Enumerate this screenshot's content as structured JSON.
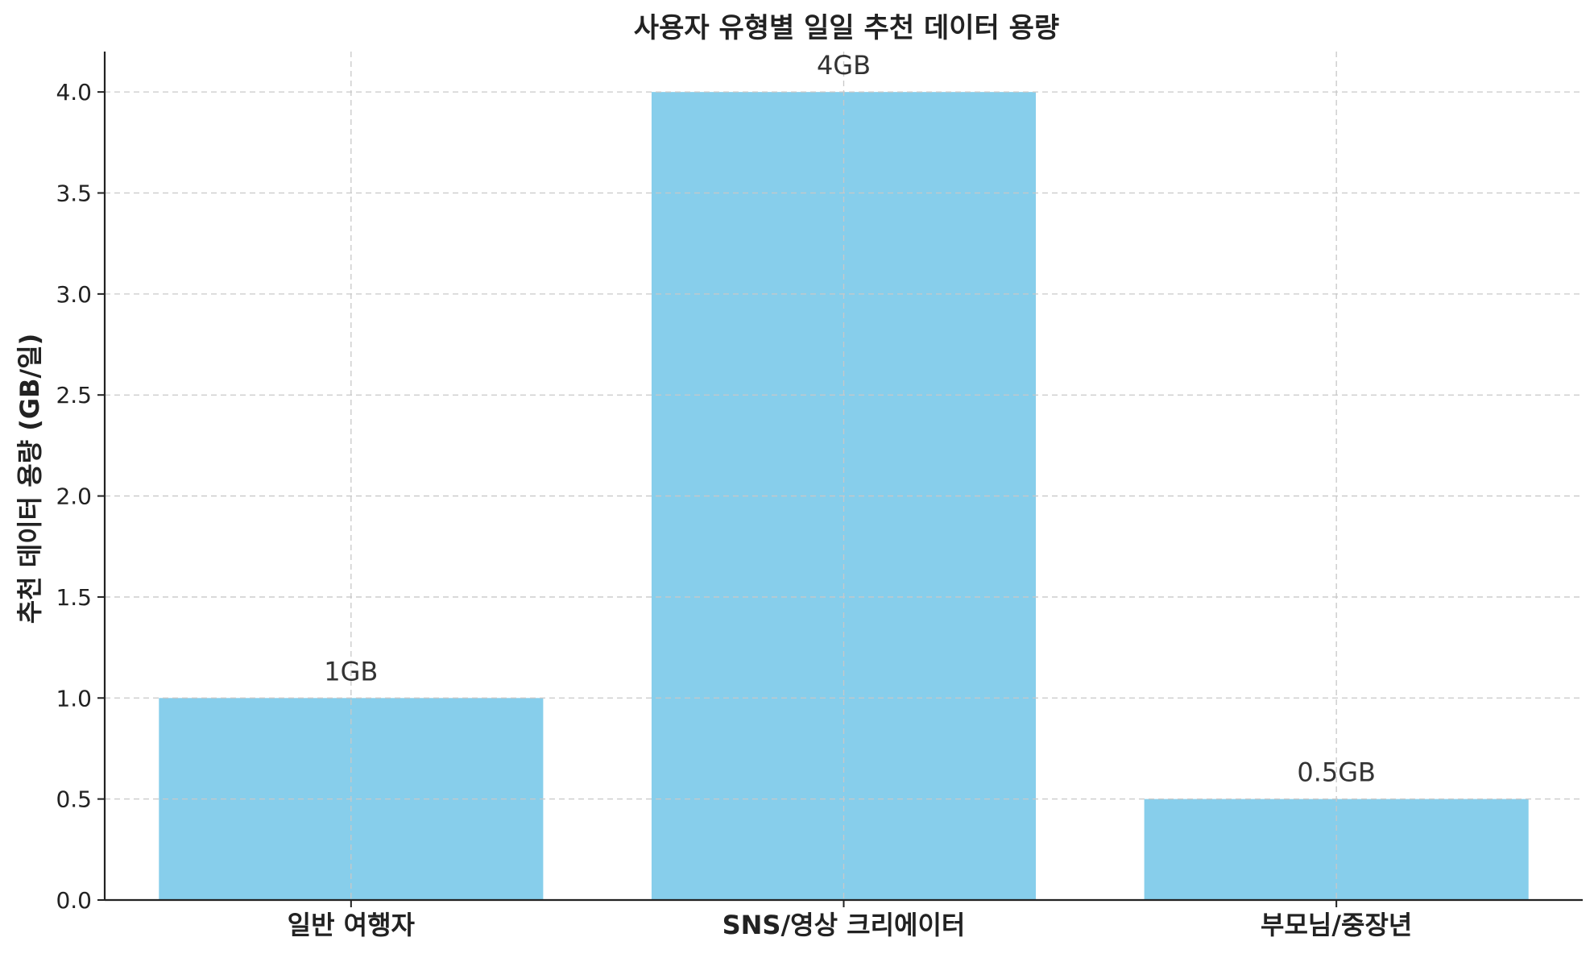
{
  "chart_data": {
    "type": "bar",
    "title": "사용자 유형별 일일 추천 데이터 용량",
    "xlabel": "",
    "ylabel": "추천 데이터 용량 (GB/일)",
    "categories": [
      "일반 여행자",
      "SNS/영상 크리에이터",
      "부모님/중장년"
    ],
    "values": [
      1,
      4,
      0.5
    ],
    "data_labels": [
      "1GB",
      "4GB",
      "0.5GB"
    ],
    "ylim": [
      0,
      4.2
    ],
    "yticks": [
      0.0,
      0.5,
      1.0,
      1.5,
      2.0,
      2.5,
      3.0,
      3.5,
      4.0
    ],
    "ytick_labels": [
      "0.0",
      "0.5",
      "1.0",
      "1.5",
      "2.0",
      "2.5",
      "3.0",
      "3.5",
      "4.0"
    ],
    "grid": true,
    "bar_color": "#87CEEB"
  }
}
